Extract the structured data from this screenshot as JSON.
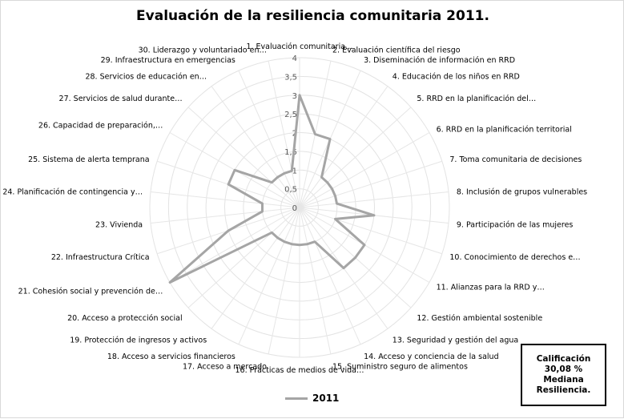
{
  "chart_data": {
    "type": "radar",
    "title": "Evaluación de la resiliencia comunitaria 2011.",
    "categories": [
      "1. Evaluación comunitaria…",
      "2. Evaluación científica del riesgo",
      "3. Diseminación de información en RRD",
      "4. Educación de los niños en RRD",
      "5. RRD en la planificación del…",
      "6. RRD en la planificación territorial",
      "7. Toma comunitaria de decisiones",
      "8. Inclusión de grupos vulnerables",
      "9. Participación de las mujeres",
      "10. Conocimiento de derechos e…",
      "11. Alianzas para la RRD y…",
      "12. Gestión ambiental sostenible",
      "13. Seguridad y gestión del agua",
      "14. Acceso y conciencia de la salud",
      "15. Suministro seguro de alimentos",
      "16. Prácticas de medios de vida…",
      "17. Acceso a mercado",
      "18. Acceso a servicios financieros",
      "19. Protección de ingresos y activos",
      "20. Acceso a protección social",
      "21. Cohesión social y prevención de…",
      "22. Infraestructura Crítica",
      "23.  Vivienda",
      "24. Planificación de contingencia y…",
      "25. Sistema de alerta temprana",
      "26. Capacidad de preparación,…",
      "27. Servicios de salud durante…",
      "28. Servicios de educación en…",
      "29. Infraestructura en emergencias",
      "30. Liderazgo y voluntariado en…"
    ],
    "series": [
      {
        "name": "2011",
        "color": "#a5a5a5",
        "values": [
          3,
          2,
          2,
          1,
          1,
          1,
          1,
          1,
          2,
          1,
          2,
          2,
          2,
          1,
          1,
          1,
          1,
          1,
          1,
          1,
          4,
          2,
          1,
          1,
          2,
          2,
          1,
          1,
          1,
          1
        ]
      }
    ],
    "rlim": [
      0,
      4
    ],
    "ticks": [
      "0",
      "0,5",
      "1",
      "1,5",
      "2",
      "2,5",
      "3",
      "3,5",
      "4"
    ],
    "grid": true,
    "legend": "bottom"
  },
  "score_box": {
    "lines": [
      "Calificación",
      "30,08 %",
      "Mediana",
      "Resiliencia."
    ]
  }
}
